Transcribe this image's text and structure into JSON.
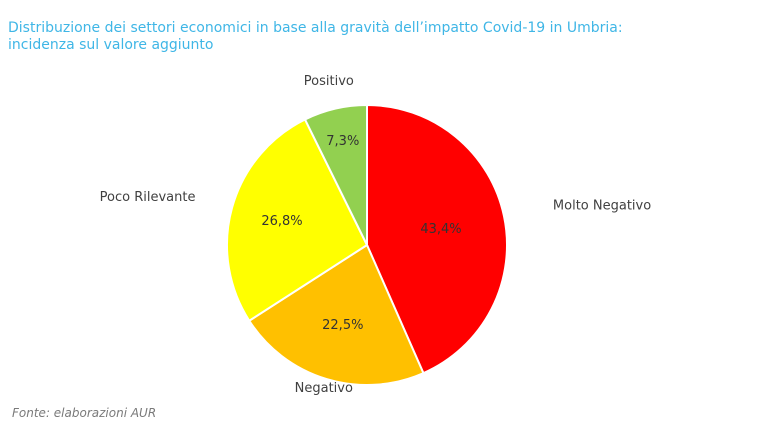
{
  "title_line1": "Distribuzione dei settori economici in base alla gravità dell’impatto Covid-19 in Umbria:",
  "title_line2": "incidenza sul valore aggiunto",
  "source": "Fonte: elaborazioni AUR",
  "chart_data": {
    "type": "pie",
    "title": "Distribuzione dei settori economici in base alla gravità dell’impatto Covid-19 in Umbria: incidenza sul valore aggiunto",
    "categories": [
      "Molto Negativo",
      "Negativo",
      "Poco Rilevante",
      "Positivo"
    ],
    "values": [
      43.4,
      22.5,
      26.8,
      7.3
    ],
    "value_labels": [
      "43,4%",
      "22,5%",
      "26,8%",
      "7,3%"
    ],
    "colors": [
      "#ff0000",
      "#ffc000",
      "#ffff00",
      "#92d050"
    ],
    "start": "12 o'clock",
    "direction": "clockwise",
    "legend": "none (category labels outside slices)"
  }
}
